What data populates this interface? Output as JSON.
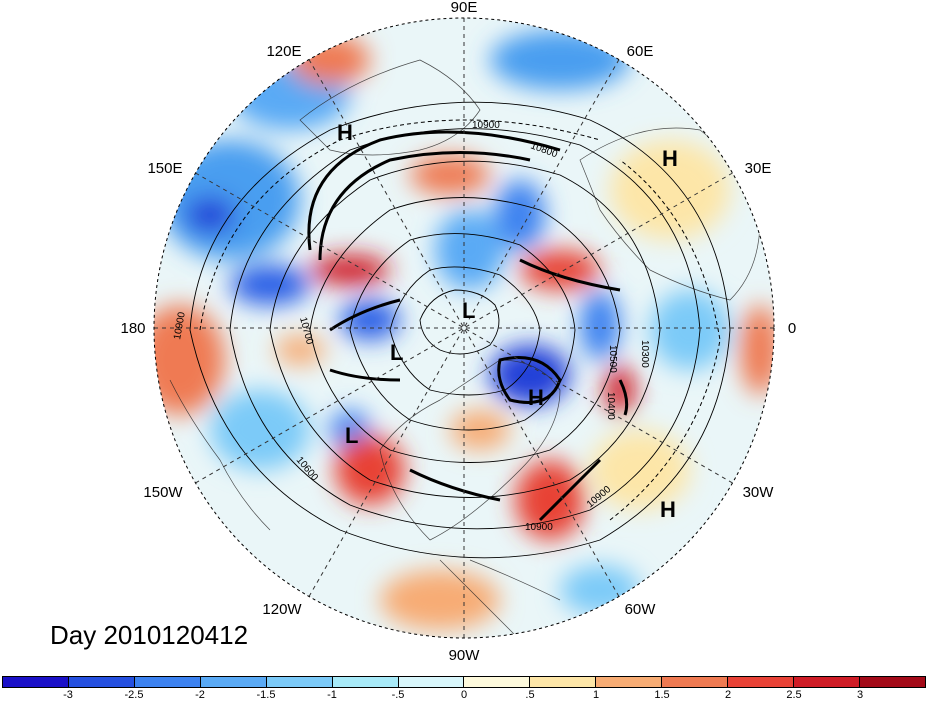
{
  "map": {
    "projection": "north-polar-stereographic",
    "longitude_labels": [
      "90E",
      "60E",
      "30E",
      "0",
      "30W",
      "60W",
      "90W",
      "120W",
      "150W",
      "180",
      "150E",
      "120E"
    ],
    "contour_labels": [
      "10900",
      "10800",
      "10700",
      "10600",
      "10500",
      "10400",
      "10300"
    ],
    "pressure_centers": [
      {
        "symbol": "H",
        "region": "north-pacific"
      },
      {
        "symbol": "H",
        "region": "eastern-europe"
      },
      {
        "symbol": "L",
        "region": "arctic"
      },
      {
        "symbol": "L",
        "region": "bering-sea"
      },
      {
        "symbol": "H",
        "region": "greenland"
      },
      {
        "symbol": "L",
        "region": "gulf-of-alaska"
      },
      {
        "symbol": "H",
        "region": "mid-atlantic"
      }
    ]
  },
  "title": {
    "day_label": "Day 2010120412"
  },
  "colorbar": {
    "colors": [
      "#1a10c8",
      "#2550e0",
      "#3c82f0",
      "#5aaaf5",
      "#7ccaf8",
      "#a8eaf8",
      "#d8f6fb",
      "#fdf9dc",
      "#fde6a8",
      "#f7ac74",
      "#ef7a52",
      "#e84236",
      "#cf1c26",
      "#a30a18"
    ],
    "tick_labels": [
      "-3",
      "-2.5",
      "-2",
      "-1.5",
      "-1",
      "-.5",
      "0",
      ".5",
      "1",
      "1.5",
      "2",
      "2.5",
      "3"
    ]
  }
}
